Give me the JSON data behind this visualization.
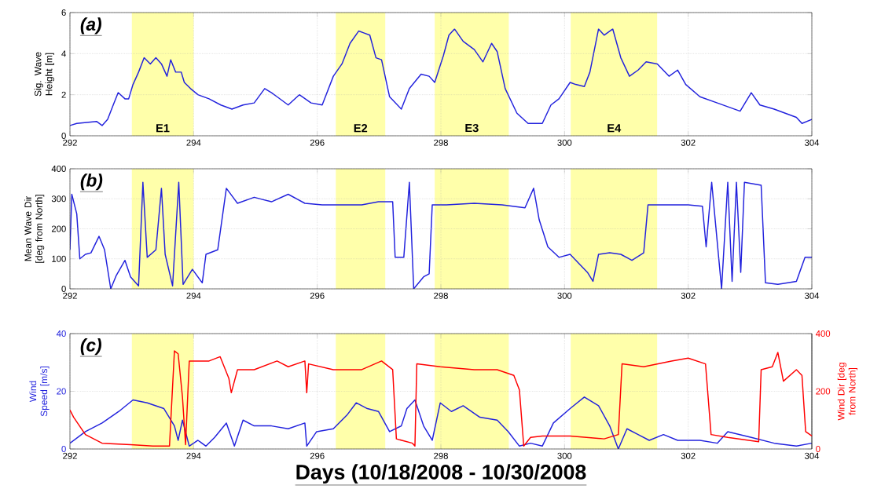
{
  "chart_data": [
    {
      "type": "line",
      "title": "(a)",
      "ylabel": "Sig. Wave Height [m]",
      "xlim": [
        292,
        304
      ],
      "xticks": [
        292,
        294,
        296,
        298,
        300,
        302,
        304
      ],
      "ylim": [
        0,
        6
      ],
      "yticks": [
        0,
        2,
        4,
        6
      ],
      "grid": true,
      "bands": [
        {
          "axis": "x",
          "from": 293.0,
          "to": 294.0,
          "label": "E1",
          "color": "#ffffaa"
        },
        {
          "axis": "x",
          "from": 296.3,
          "to": 297.1,
          "label": "E2",
          "color": "#ffffaa"
        },
        {
          "axis": "x",
          "from": 297.9,
          "to": 299.1,
          "label": "E3",
          "color": "#ffffaa"
        },
        {
          "axis": "x",
          "from": 300.1,
          "to": 301.5,
          "label": "E4",
          "color": "#ffffaa"
        }
      ],
      "series": [
        {
          "color": "#2222dd",
          "x": [
            292.0,
            292.11,
            292.43,
            292.52,
            292.61,
            292.7,
            292.78,
            292.89,
            292.95,
            293.02,
            293.11,
            293.2,
            293.3,
            293.39,
            293.48,
            293.57,
            293.63,
            293.71,
            293.8,
            293.85,
            293.95,
            294.07,
            294.25,
            294.44,
            294.62,
            294.8,
            294.98,
            295.15,
            295.26,
            295.35,
            295.53,
            295.71,
            295.9,
            296.08,
            296.26,
            296.4,
            296.53,
            296.67,
            296.76,
            296.85,
            296.95,
            297.04,
            297.17,
            297.36,
            297.49,
            297.68,
            297.81,
            297.9,
            298.04,
            298.13,
            298.22,
            298.36,
            298.54,
            298.68,
            298.82,
            298.91,
            299.04,
            299.23,
            299.41,
            299.64,
            299.78,
            299.91,
            300.09,
            300.18,
            300.32,
            300.41,
            300.55,
            300.64,
            300.78,
            300.91,
            301.05,
            301.19,
            301.32,
            301.5,
            301.69,
            301.83,
            301.96,
            302.19,
            302.47,
            302.84,
            303.02,
            303.16,
            303.39,
            303.75,
            303.84,
            304.0
          ],
          "values": [
            0.5,
            0.6,
            0.7,
            0.5,
            0.8,
            1.5,
            2.1,
            1.8,
            1.8,
            2.5,
            3.1,
            3.8,
            3.5,
            3.8,
            3.5,
            2.9,
            3.7,
            3.1,
            3.1,
            2.6,
            2.3,
            2.0,
            1.8,
            1.5,
            1.3,
            1.5,
            1.6,
            2.3,
            2.1,
            1.9,
            1.5,
            2.0,
            1.6,
            1.5,
            2.9,
            3.5,
            4.5,
            5.1,
            5.0,
            4.9,
            3.8,
            3.7,
            1.9,
            1.3,
            2.3,
            3.0,
            2.9,
            2.6,
            3.9,
            4.9,
            5.2,
            4.6,
            4.2,
            3.6,
            4.5,
            4.1,
            2.3,
            1.1,
            0.6,
            0.6,
            1.5,
            1.8,
            2.6,
            2.5,
            2.4,
            3.1,
            5.2,
            4.9,
            5.2,
            3.8,
            2.9,
            3.2,
            3.6,
            3.5,
            2.9,
            3.2,
            2.5,
            1.9,
            1.6,
            1.2,
            2.1,
            1.5,
            1.3,
            0.9,
            0.6,
            0.8
          ]
        }
      ]
    },
    {
      "type": "line",
      "title": "(b)",
      "ylabel": "Mean Wave Dir [deg from North]",
      "xlim": [
        292,
        304
      ],
      "xticks": [
        292,
        294,
        296,
        298,
        300,
        302,
        304
      ],
      "ylim": [
        0,
        400
      ],
      "yticks": [
        0,
        100,
        200,
        300,
        400
      ],
      "grid": true,
      "bands": [
        {
          "axis": "x",
          "from": 293.0,
          "to": 294.0,
          "color": "#ffffaa"
        },
        {
          "axis": "x",
          "from": 296.3,
          "to": 297.1,
          "color": "#ffffaa"
        },
        {
          "axis": "x",
          "from": 297.9,
          "to": 299.1,
          "color": "#ffffaa"
        },
        {
          "axis": "x",
          "from": 300.1,
          "to": 301.5,
          "color": "#ffffaa"
        }
      ],
      "series": [
        {
          "color": "#2222dd",
          "x": [
            292.0,
            292.03,
            292.11,
            292.16,
            292.25,
            292.34,
            292.47,
            292.56,
            292.66,
            292.75,
            292.89,
            292.98,
            293.11,
            293.18,
            293.25,
            293.39,
            293.48,
            293.54,
            293.66,
            293.76,
            293.83,
            293.98,
            294.14,
            294.2,
            294.39,
            294.53,
            294.71,
            294.98,
            295.26,
            295.53,
            295.8,
            296.08,
            296.44,
            296.72,
            296.99,
            297.22,
            297.26,
            297.4,
            297.49,
            297.56,
            297.72,
            297.81,
            297.86,
            298.09,
            298.54,
            298.99,
            299.36,
            299.5,
            299.59,
            299.73,
            299.91,
            300.09,
            300.37,
            300.46,
            300.55,
            300.73,
            300.91,
            301.09,
            301.28,
            301.35,
            301.73,
            302.0,
            302.23,
            302.29,
            302.38,
            302.54,
            302.64,
            302.71,
            302.78,
            302.85,
            302.91,
            303.18,
            303.25,
            303.45,
            303.75,
            303.89,
            304.0
          ],
          "values": [
            130,
            315,
            250,
            100,
            115,
            120,
            175,
            130,
            0,
            45,
            95,
            40,
            10,
            355,
            105,
            130,
            335,
            115,
            10,
            355,
            15,
            65,
            20,
            115,
            130,
            335,
            285,
            305,
            290,
            315,
            285,
            280,
            280,
            280,
            290,
            290,
            105,
            105,
            355,
            0,
            40,
            50,
            280,
            280,
            285,
            280,
            270,
            335,
            230,
            140,
            105,
            115,
            55,
            25,
            115,
            120,
            115,
            95,
            120,
            280,
            280,
            280,
            275,
            140,
            355,
            0,
            355,
            25,
            355,
            55,
            355,
            345,
            20,
            15,
            25,
            105,
            105
          ]
        }
      ]
    },
    {
      "type": "line",
      "title": "(c)",
      "xlabel": "Days (10/18/2008 - 10/30/2008",
      "ylabel": "Wind Speed [m/s]",
      "y2label": "Wind Dir [deg from North]",
      "xlim": [
        292,
        304
      ],
      "xticks": [
        292,
        294,
        296,
        298,
        300,
        302,
        304
      ],
      "ylim": [
        0,
        40
      ],
      "yticks": [
        0,
        20,
        40
      ],
      "y2lim": [
        0,
        400
      ],
      "y2ticks": [
        0,
        200,
        400
      ],
      "grid": true,
      "bands": [
        {
          "axis": "x",
          "from": 293.0,
          "to": 294.0,
          "color": "#ffffaa"
        },
        {
          "axis": "x",
          "from": 296.3,
          "to": 297.1,
          "color": "#ffffaa"
        },
        {
          "axis": "x",
          "from": 297.9,
          "to": 299.1,
          "color": "#ffffaa"
        },
        {
          "axis": "x",
          "from": 300.1,
          "to": 301.5,
          "color": "#ffffaa"
        }
      ],
      "series": [
        {
          "color": "#2222dd",
          "x": [
            292.0,
            292.25,
            292.52,
            292.79,
            293.02,
            293.25,
            293.52,
            293.69,
            293.75,
            293.82,
            293.93,
            294.07,
            294.2,
            294.34,
            294.53,
            294.66,
            294.8,
            294.98,
            295.26,
            295.53,
            295.8,
            295.83,
            295.99,
            296.26,
            296.49,
            296.63,
            296.81,
            296.99,
            297.17,
            297.36,
            297.45,
            297.58,
            297.72,
            297.86,
            297.99,
            298.17,
            298.36,
            298.63,
            298.91,
            299.09,
            299.27,
            299.45,
            299.64,
            299.82,
            300.09,
            300.32,
            300.55,
            300.73,
            300.87,
            301.01,
            301.19,
            301.37,
            301.6,
            301.83,
            302.19,
            302.47,
            302.64,
            303.02,
            303.39,
            303.75,
            304.0
          ],
          "values": [
            2,
            6,
            9,
            13,
            17,
            16,
            14,
            8,
            3,
            10,
            1,
            3,
            1,
            4,
            9,
            1,
            10,
            8,
            8,
            7,
            9,
            1,
            6,
            7,
            12,
            16,
            14,
            13,
            6,
            8,
            14,
            17,
            8,
            3,
            16,
            13,
            15,
            11,
            10,
            6,
            1,
            2,
            1,
            9,
            14,
            18,
            15,
            8,
            0,
            7,
            5,
            3,
            5,
            3,
            3,
            2,
            6,
            4,
            2,
            1,
            2
          ]
        },
        {
          "color": "#ff0000",
          "axis": "y2",
          "x": [
            292.0,
            292.06,
            292.25,
            292.52,
            292.98,
            293.34,
            293.61,
            293.69,
            293.75,
            293.82,
            293.87,
            293.93,
            294.25,
            294.43,
            294.57,
            294.61,
            294.71,
            294.98,
            295.35,
            295.53,
            295.8,
            295.83,
            295.86,
            296.26,
            296.72,
            297.04,
            297.22,
            297.28,
            297.54,
            297.58,
            297.61,
            297.99,
            298.54,
            298.91,
            299.18,
            299.27,
            299.34,
            299.45,
            299.64,
            300.09,
            300.64,
            300.87,
            300.93,
            301.28,
            301.73,
            302.0,
            302.28,
            302.37,
            302.64,
            303.14,
            303.18,
            303.36,
            303.45,
            303.54,
            303.75,
            303.84,
            303.9,
            304.0
          ],
          "values": [
            135,
            110,
            50,
            20,
            15,
            10,
            10,
            340,
            330,
            180,
            15,
            305,
            305,
            320,
            245,
            195,
            275,
            275,
            305,
            285,
            305,
            195,
            295,
            275,
            275,
            305,
            275,
            35,
            20,
            10,
            295,
            285,
            275,
            275,
            255,
            205,
            10,
            40,
            45,
            45,
            35,
            50,
            295,
            285,
            305,
            315,
            295,
            50,
            40,
            25,
            275,
            285,
            335,
            235,
            275,
            255,
            60,
            45
          ]
        }
      ]
    }
  ]
}
